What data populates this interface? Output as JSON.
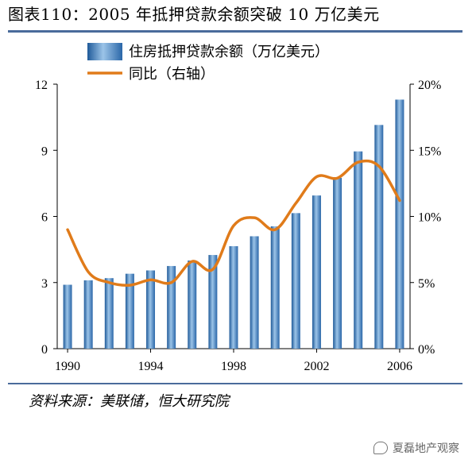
{
  "page": {
    "title": "图表110：2005 年抵押贷款余额突破 10 万亿美元",
    "source": "资料来源：美联储，恒大研究院",
    "watermark": "夏磊地产观察"
  },
  "colors": {
    "bar": "#3b77b5",
    "bar_highlight": "#9cc4e8",
    "line": "#e07b1a",
    "rule": "#4a6b9b"
  },
  "chart_data": {
    "type": "bar",
    "x": [
      1990,
      1991,
      1992,
      1993,
      1994,
      1995,
      1996,
      1997,
      1998,
      1999,
      2000,
      2001,
      2002,
      2003,
      2004,
      2005,
      2006
    ],
    "x_tick_labels": [
      "1990",
      "1994",
      "1998",
      "2002",
      "2006"
    ],
    "x_tick_values": [
      1990,
      1994,
      1998,
      2002,
      2006
    ],
    "series": [
      {
        "name": "住房抵押贷款余额（万亿美元）",
        "type": "bar",
        "axis": "left",
        "values": [
          2.9,
          3.1,
          3.2,
          3.4,
          3.55,
          3.75,
          4.0,
          4.25,
          4.65,
          5.1,
          5.55,
          6.15,
          6.95,
          7.75,
          8.95,
          10.15,
          11.3
        ]
      },
      {
        "name": "同比（右轴）",
        "type": "line",
        "axis": "right",
        "values": [
          9.0,
          5.8,
          5.0,
          4.8,
          5.2,
          5.0,
          6.6,
          6.0,
          9.3,
          9.9,
          9.0,
          11.0,
          13.0,
          12.9,
          14.1,
          13.8,
          11.2
        ]
      }
    ],
    "yticks_left": [
      0,
      3,
      6,
      9,
      12
    ],
    "yticks_right": [
      "0%",
      "5%",
      "10%",
      "15%",
      "20%"
    ],
    "ylim_left": [
      0,
      12
    ],
    "ylim_right": [
      0,
      20
    ],
    "legend_position": "top",
    "grid": false
  }
}
